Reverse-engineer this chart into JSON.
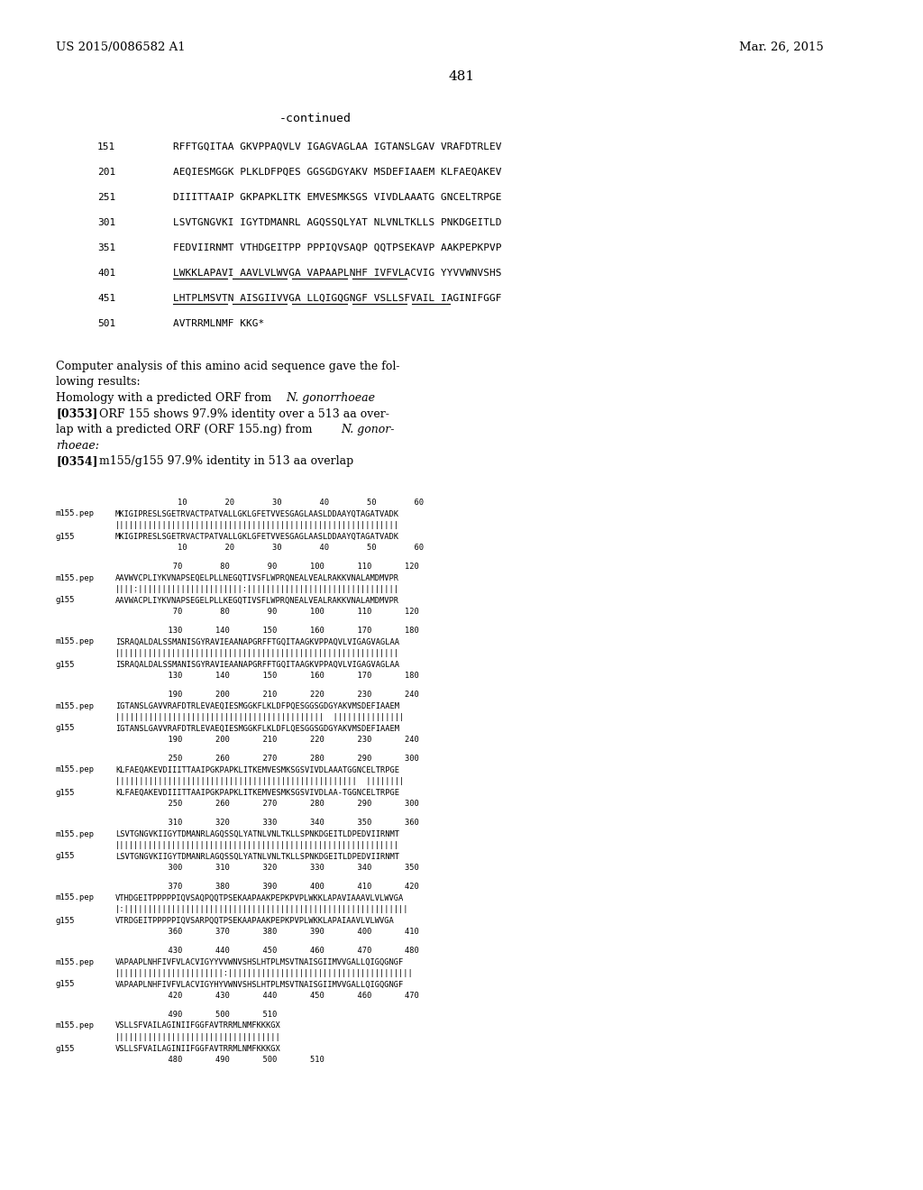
{
  "page_number": "481",
  "patent_number": "US 2015/0086582 A1",
  "patent_date": "Mar. 26, 2015",
  "background_color": "#ffffff",
  "text_color": "#000000",
  "continued_label": "-continued",
  "sequence_lines": [
    {
      "num": "151",
      "seq": "RFFTGQITAA GKVPPAQVLV IGAGVAGLAA IGTANSLGAV VRAFDTRLEV"
    },
    {
      "num": "201",
      "seq": "AEQIESMGGK PLKLDFPQES GGSGDGYAKV MSDEFIAAEM KLFAEQAKEV"
    },
    {
      "num": "251",
      "seq": "DIIITTAAIP GKPAPKLITK EMVESMKSGS VIVDLAAATG GNCELTRPGE"
    },
    {
      "num": "301",
      "seq": "LSVTGNGVKI IGYTDMANRL AGQSSQLYAT NLVNLTKLLS PNKDGEITLD"
    },
    {
      "num": "351",
      "seq": "FEDVIIRNMT VTHDGEITPP PPPIQVSAQP QQTPSEKAVP AAKPEPKPVP"
    },
    {
      "num": "401",
      "seq": "LWKKLAPAVI AAVLVLWVGA VAPAAPLNHF IVFVLACVIG YYVVWNVSHS"
    },
    {
      "num": "451",
      "seq": "LHTPLMSVTN AISGIIVVGA LLQIGQGNGF VSLLSFVAIL IAGINIFGGF"
    },
    {
      "num": "501",
      "seq": "AVTRRMLNMF KKG*"
    }
  ],
  "alignment_blocks": [
    {
      "numbers_top": "        10        20        30        40        50        60",
      "m155_seq": "MKIGIPRESLSGETRVACTPATVALLGKLGFETVVESGAGLAASLDDAAYQTAGATVADK",
      "match_line": "||||||||||||||||||||||||||||||||||||||||||||||||||||||||||||",
      "g155_seq": "MKIGIPRESLSGETRVACTPATVALLGKLGFETVVESGAGLAASLDDAAYQTAGATVADK",
      "numbers_bot": "        10        20        30        40        50        60"
    },
    {
      "numbers_top": "       70        80        90       100       110       120",
      "m155_seq": "AAVWVCPLIYKVNAPSEQELPLLNEGQTIVSFLWPRQNEALVEALRAKKVNALAMDMVPR",
      "match_line": "||||:||||||||||||||||||||||:||||||||||||||||||||||||||||||||",
      "g155_seq": "AAVWACPLIYKVNAPSEGELPLLKEGQTIVSFLWPRQNEALVEALRAKKVNALAMDMVPR",
      "numbers_bot": "       70        80        90       100       110       120"
    },
    {
      "numbers_top": "      130       140       150       160       170       180",
      "m155_seq": "ISRAQALDALSSMANISGYRAVIEAANAPGRFFTGQITAAGKVPPAQVLVIGAGVAGLAA",
      "match_line": "||||||||||||||||||||||||||||||||||||||||||||||||||||||||||||",
      "g155_seq": "ISRAQALDALSSMANISGYRAVIEAANAPGRFFTGQITAAGKVPPAQVLVIGAGVAGLAA",
      "numbers_bot": "      130       140       150       160       170       180"
    },
    {
      "numbers_top": "      190       200       210       220       230       240",
      "m155_seq": "IGTANSLGAVVRAFDTRLEVAEQIESMGGKFLKLDFPQESGGSGDGYAKVMSDEFIAAEM",
      "match_line": "||||||||||||||||||||||||||||||||||||||||||||  |||||||||||||||",
      "g155_seq": "IGTANSLGAVVRAFDTRLEVAEQIESMGGKFLKLDFLQESGGSGDGYAKVMSDEFIAAEM",
      "numbers_bot": "      190       200       210       220       230       240"
    },
    {
      "numbers_top": "      250       260       270       280       290       300",
      "m155_seq": "KLFAEQAKEVDIIITTAAIPGKPAPKLITKEMVESMKSGSVIVDLAAATGGNCELTRPGE",
      "match_line": "|||||||||||||||||||||||||||||||||||||||||||||||||||  ||||||||",
      "g155_seq": "KLFAEQAKEVDIIITTAAIPGKPAPKLITKEMVESMKSGSVIVDLAA-TGGNCELTRPGE",
      "numbers_bot": "      250       260       270       280       290       300"
    },
    {
      "numbers_top": "      310       320       330       340       350       360",
      "m155_seq": "LSVTGNGVKIIGYTDMANRLAGQSSQLYATNLVNLTKLLSPNKDGEITLDPEDVIIRNMT",
      "match_line": "||||||||||||||||||||||||||||||||||||||||||||||||||||||||||||",
      "g155_seq": "LSVTGNGVKIIGYTDMANRLAGQSSQLYATNLVNLTKLLSPNKDGEITLDPEDVIIRNMT",
      "numbers_bot": "      300       310       320       330       340       350"
    },
    {
      "numbers_top": "      370       380       390       400       410       420",
      "m155_seq": "VTHDGEITPPPPPIQVSAQPQQTPSEKAAPAAKPEPKPVPLWKKLAPAVIAAAVLVLWVGA",
      "match_line": "|:||||||||||||||||||||||||||||||||||||||||||||||||||||||||||||",
      "g155_seq": "VTRDGEITPPPPPIQVSARPQQTPSEKAAPAAKPEPKPVPLWKKLAPAIAAVLVLWVGA",
      "numbers_bot": "      360       370       380       390       400       410"
    },
    {
      "numbers_top": "      430       440       450       460       470       480",
      "m155_seq": "VAPAAPLNHFIVFVLACVIGYYVVWNVSHSLHTPLMSVTNAISGIIMVVGALLQIGQGNGF",
      "match_line": "|||||||||||||||||||||||:|||||||||||||||||||||||||||||||||||||||",
      "g155_seq": "VAPAAPLNHFIVFVLACVIGYHYVWNVSHSLHTPLMSVTNAISGIIMVVGALLQIGQGNGF",
      "numbers_bot": "      420       430       440       450       460       470"
    },
    {
      "numbers_top": "      490       500       510",
      "m155_seq": "VSLLSFVAILAGINIIFGGFAVTRRMLNMFKKKGX",
      "match_line": "|||||||||||||||||||||||||||||||||||",
      "g155_seq": "VSLLSFVAILAGINIIFGGFAVTRRMLNMFKKKGX",
      "numbers_bot": "      480       490       500       510"
    }
  ]
}
